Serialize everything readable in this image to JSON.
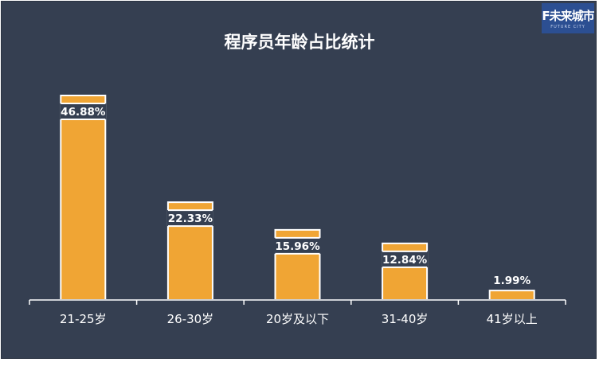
{
  "logo": {
    "text": "F未来城市",
    "subtext": "FUTURE CITY"
  },
  "chart_data": {
    "type": "bar",
    "title": "程序员年龄占比统计",
    "categories": [
      "21-25岁",
      "26-30岁",
      "20岁及以下",
      "31-40岁",
      "41岁以上"
    ],
    "values": [
      46.88,
      22.33,
      15.96,
      12.84,
      1.99
    ],
    "value_labels": [
      "46.88%",
      "22.33%",
      "15.96%",
      "12.84%",
      "1.99%"
    ],
    "value_unit": "%",
    "xlabel": "",
    "ylabel": "",
    "ylim": [
      0,
      50
    ],
    "grid": false,
    "legend": "none",
    "colors": {
      "bar": "#f0a534",
      "background": "#353f51",
      "text": "#ffffff"
    }
  }
}
